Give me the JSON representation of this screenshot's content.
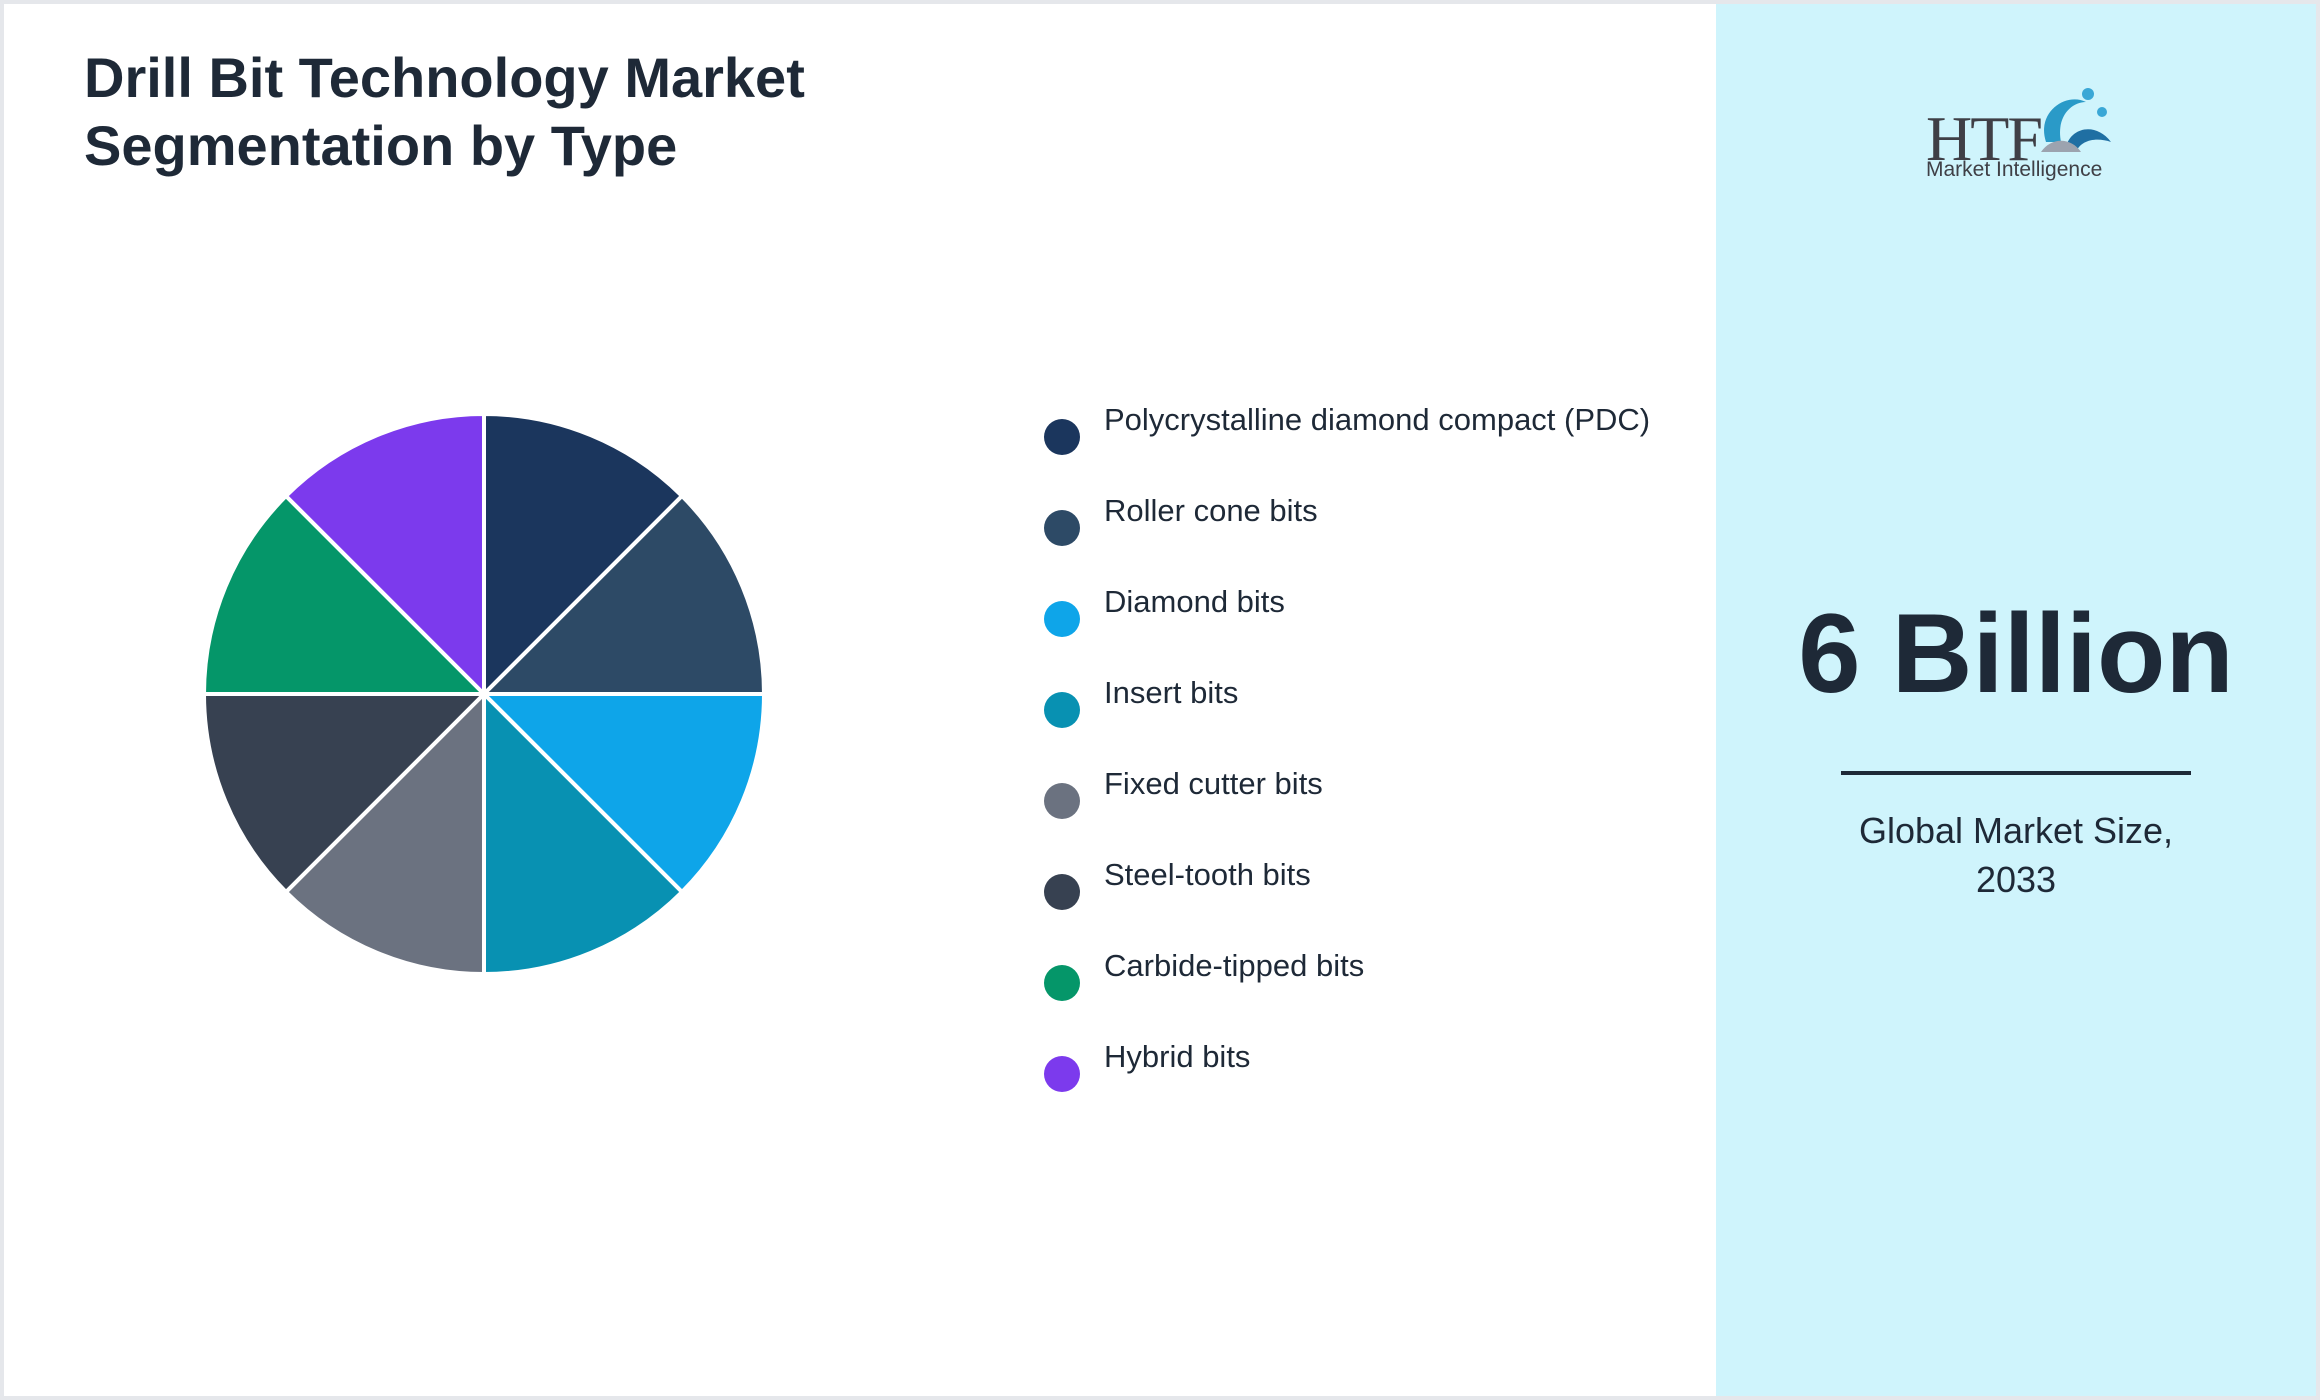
{
  "header": {
    "title": "Drill Bit Technology Market Segmentation by Type"
  },
  "chart_data": {
    "type": "pie",
    "title": "Drill Bit Technology Market Segmentation by Type",
    "categories": [
      "Polycrystalline diamond compact (PDC)",
      "Roller cone bits",
      "Diamond bits",
      "Insert bits",
      "Fixed cutter bits",
      "Steel-tooth bits",
      "Carbide-tipped bits",
      "Hybrid bits"
    ],
    "values": [
      12.5,
      12.5,
      12.5,
      12.5,
      12.5,
      12.5,
      12.5,
      12.5
    ],
    "colors": [
      "#1b365d",
      "#2d4a66",
      "#0ea5e9",
      "#0891b2",
      "#6b7280",
      "#374151",
      "#059669",
      "#7c3aed"
    ],
    "legend_position": "right"
  },
  "legend": {
    "items": [
      {
        "label": "Polycrystalline diamond compact (PDC)",
        "color": "#1b365d"
      },
      {
        "label": "Roller cone bits",
        "color": "#2d4a66"
      },
      {
        "label": "Diamond bits",
        "color": "#0ea5e9"
      },
      {
        "label": "Insert bits",
        "color": "#0891b2"
      },
      {
        "label": "Fixed cutter bits",
        "color": "#6b7280"
      },
      {
        "label": "Steel-tooth bits",
        "color": "#374151"
      },
      {
        "label": "Carbide-tipped bits",
        "color": "#059669"
      },
      {
        "label": "Hybrid bits",
        "color": "#7c3aed"
      }
    ]
  },
  "sidebar": {
    "logo": {
      "text": "HTF",
      "subtext": "Market Intelligence",
      "icon": "htf-logo-icon"
    },
    "value": "6 Billion",
    "caption": "Global Market Size, 2033",
    "background": "#cff4fc"
  }
}
